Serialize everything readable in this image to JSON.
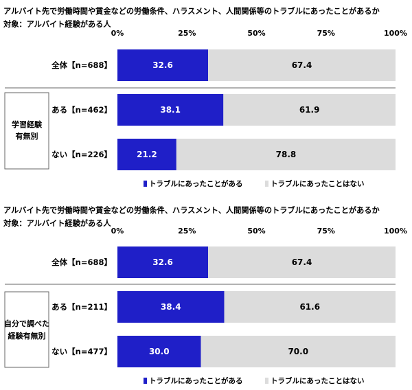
{
  "colors": {
    "series1": "#1f1fc8",
    "series2": "#dcdcdc",
    "frame": "#666666",
    "separator": "#999999"
  },
  "chart_data": [
    {
      "type": "bar",
      "orientation": "horizontal",
      "stacked": true,
      "title": "アルバイト先で労働時間や賃金などの労働条件、ハラスメント、人間関係等のトラブルにあったことがあるか",
      "subtitle": "対象：アルバイト経験がある人",
      "xlim": [
        0,
        100
      ],
      "x_ticks": [
        "0%",
        "25%",
        "50%",
        "75%",
        "100%"
      ],
      "group_label": [
        "学習経験",
        "有無別"
      ],
      "legend_position": "bottom",
      "categories": [
        "全体【n=688】",
        "ある【n=462】",
        "ない【n=226】"
      ],
      "series": [
        {
          "name": "トラブルにあったことがある",
          "values": [
            32.6,
            38.1,
            21.2
          ],
          "labels": [
            "32.6",
            "38.1",
            "21.2"
          ]
        },
        {
          "name": "トラブルにあったことはない",
          "values": [
            67.4,
            61.9,
            78.8
          ],
          "labels": [
            "67.4",
            "61.9",
            "78.8"
          ]
        }
      ]
    },
    {
      "type": "bar",
      "orientation": "horizontal",
      "stacked": true,
      "title": "アルバイト先で労働時間や賃金などの労働条件、ハラスメント、人間関係等のトラブルにあったことがあるか",
      "subtitle": "対象：アルバイト経験がある人",
      "xlim": [
        0,
        100
      ],
      "x_ticks": [
        "0%",
        "25%",
        "50%",
        "75%",
        "100%"
      ],
      "group_label": [
        "自分で調べた",
        "経験有無別"
      ],
      "legend_position": "bottom",
      "categories": [
        "全体【n=688】",
        "ある【n=211】",
        "ない【n=477】"
      ],
      "series": [
        {
          "name": "トラブルにあったことがある",
          "values": [
            32.6,
            38.4,
            30.0
          ],
          "labels": [
            "32.6",
            "38.4",
            "30.0"
          ]
        },
        {
          "name": "トラブルにあったことはない",
          "values": [
            67.4,
            61.6,
            70.0
          ],
          "labels": [
            "67.4",
            "61.6",
            "70.0"
          ]
        }
      ]
    }
  ]
}
